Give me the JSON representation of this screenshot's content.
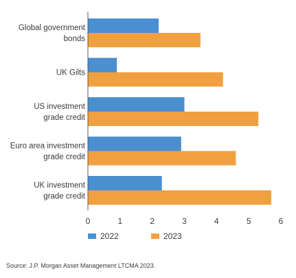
{
  "chart_data": {
    "type": "bar",
    "orientation": "horizontal",
    "categories": [
      [
        "Global government",
        "bonds"
      ],
      [
        "UK Gilts"
      ],
      [
        "US investment",
        "grade credit"
      ],
      [
        "Euro area investment",
        "grade credit"
      ],
      [
        "UK investment",
        "grade credit"
      ]
    ],
    "series": [
      {
        "name": "2022",
        "color": "#4a8fd0",
        "values": [
          2.2,
          0.9,
          3.0,
          2.9,
          2.3
        ]
      },
      {
        "name": "2023",
        "color": "#f0a040",
        "values": [
          3.5,
          4.2,
          5.3,
          4.6,
          5.7
        ]
      }
    ],
    "xlim": [
      0,
      6
    ],
    "xticks": [
      0,
      1,
      2,
      3,
      4,
      5,
      6
    ],
    "grid": false,
    "legend": "bottom"
  },
  "source": "Source: J.P. Morgan Asset Management LTCMA 2023."
}
